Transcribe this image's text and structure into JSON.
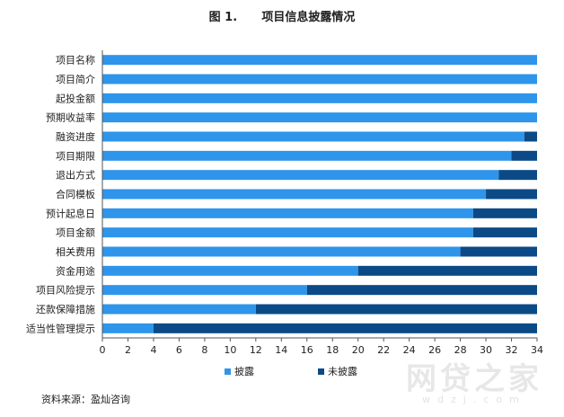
{
  "chart_data": {
    "type": "bar",
    "orientation": "horizontal",
    "stacked": true,
    "title": "图 1.      项目信息披露情况",
    "categories": [
      "项目名称",
      "项目简介",
      "起投金额",
      "预期收益率",
      "融资进度",
      "项目期限",
      "退出方式",
      "合同模板",
      "预计起息日",
      "项目金额",
      "相关费用",
      "资金用途",
      "项目风险提示",
      "还款保障措施",
      "适当性管理提示"
    ],
    "series": [
      {
        "name": "披露",
        "color": "#2e95ea",
        "values": [
          34,
          34,
          34,
          34,
          33,
          32,
          31,
          30,
          29,
          29,
          28,
          20,
          16,
          12,
          4
        ]
      },
      {
        "name": "未披露",
        "color": "#0b4a86",
        "values": [
          0,
          0,
          0,
          0,
          1,
          2,
          3,
          4,
          5,
          5,
          6,
          14,
          18,
          22,
          30
        ]
      }
    ],
    "xlim": [
      0,
      34
    ],
    "xticks": [
      0,
      2,
      4,
      6,
      8,
      10,
      12,
      14,
      16,
      18,
      20,
      22,
      24,
      26,
      28,
      30,
      32,
      34
    ],
    "grid": false,
    "legend_position": "bottom"
  },
  "source_note": "资料来源：盈灿咨询",
  "watermark": {
    "main": "网贷之家",
    "sub": "wdzj.com"
  }
}
